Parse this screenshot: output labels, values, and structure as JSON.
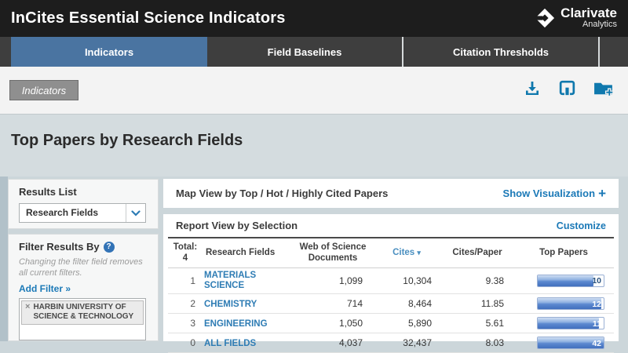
{
  "app": {
    "title": "InCites Essential Science Indicators"
  },
  "logo": {
    "brand": "Clarivate",
    "sub": "Analytics"
  },
  "tabs": [
    {
      "label": "Indicators",
      "active": true
    },
    {
      "label": "Field Baselines",
      "active": false
    },
    {
      "label": "Citation Thresholds",
      "active": false
    }
  ],
  "breadcrumb": {
    "label": "Indicators"
  },
  "toolbar": {
    "icons": [
      "download-icon",
      "print-icon",
      "add-to-folder-icon"
    ]
  },
  "page": {
    "title": "Top Papers by Research Fields"
  },
  "sidebar": {
    "results_list": {
      "heading": "Results List",
      "dropdown_value": "Research Fields"
    },
    "filter": {
      "heading": "Filter Results By",
      "help_glyph": "?",
      "note": "Changing the filter field removes all current filters.",
      "add_filter_label": "Add Filter »",
      "tag": {
        "close_glyph": "×",
        "label": "HARBIN UNIVERSITY OF SCIENCE & TECHNOLOGY"
      }
    }
  },
  "main": {
    "map_view": {
      "title": "Map View by Top / Hot / Highly Cited Papers",
      "action": "Show Visualization",
      "action_icon": "+"
    },
    "report_view": {
      "title": "Report View by Selection",
      "action": "Customize"
    },
    "table": {
      "total_label": "Total:",
      "total_value": "4",
      "columns": {
        "field": "Research Fields",
        "wos": "Web of Science Documents",
        "cites": "Cites",
        "cites_per_paper": "Cites/Paper",
        "top_papers": "Top Papers"
      },
      "sorted_column": "Cites",
      "sort_direction": "desc",
      "sort_indicator": "▾",
      "rows": [
        {
          "rank": "1",
          "field": "MATERIALS SCIENCE",
          "wos_documents": "1,099",
          "cites": "10,304",
          "cites_per_paper": "9.38",
          "top_papers": "10",
          "bar_pct": 85,
          "value_style": "dark"
        },
        {
          "rank": "2",
          "field": "CHEMISTRY",
          "wos_documents": "714",
          "cites": "8,464",
          "cites_per_paper": "11.85",
          "top_papers": "12",
          "bar_pct": 97,
          "value_style": "light"
        },
        {
          "rank": "3",
          "field": "ENGINEERING",
          "wos_documents": "1,050",
          "cites": "5,890",
          "cites_per_paper": "5.61",
          "top_papers": "11",
          "bar_pct": 93,
          "value_style": "light"
        },
        {
          "rank": "0",
          "field": "ALL FIELDS",
          "wos_documents": "4,037",
          "cites": "32,437",
          "cites_per_paper": "8.03",
          "top_papers": "42",
          "bar_pct": 100,
          "value_style": "light"
        }
      ]
    }
  },
  "colors": {
    "header_bg": "#1d1d1d",
    "tabbar_bg": "#3e3e3e",
    "active_tab": "#4a74a1",
    "link_blue": "#1b79b7",
    "icon_blue": "#0f78ad",
    "field_link_blue": "#2e7cb4",
    "bar_fill_blue": "#4f7fc8",
    "title_band_bg": "#d4dcdf",
    "page_bg": "#ccd6da"
  }
}
